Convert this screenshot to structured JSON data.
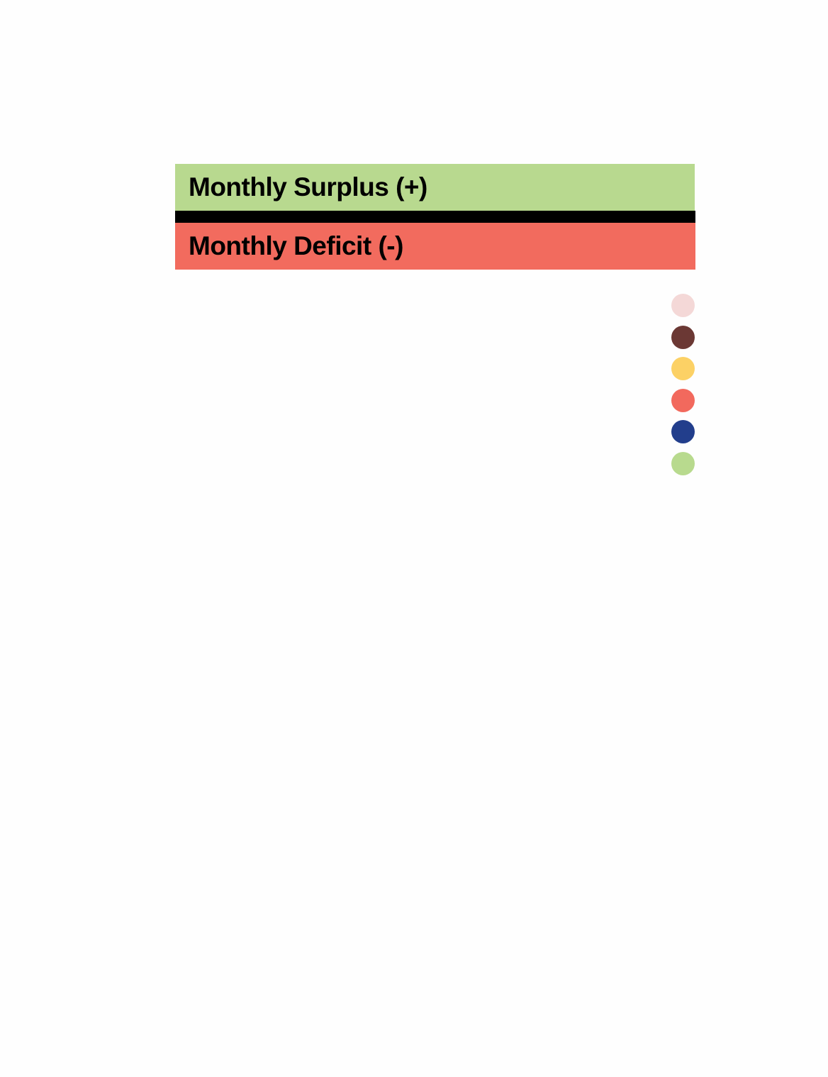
{
  "legend": {
    "surplus": {
      "label": "Monthly Surplus (+)",
      "color": "#b8d98f"
    },
    "deficit": {
      "label": "Monthly Deficit (-)",
      "color": "#f26b5e"
    },
    "divider_color": "#000000"
  },
  "palette": [
    {
      "name": "light-pink",
      "color": "#f4d8d7"
    },
    {
      "name": "dark-brown",
      "color": "#6b3834"
    },
    {
      "name": "yellow",
      "color": "#fcd165"
    },
    {
      "name": "coral",
      "color": "#f2695d"
    },
    {
      "name": "navy",
      "color": "#223e8c"
    },
    {
      "name": "light-green",
      "color": "#b8da8e"
    }
  ]
}
